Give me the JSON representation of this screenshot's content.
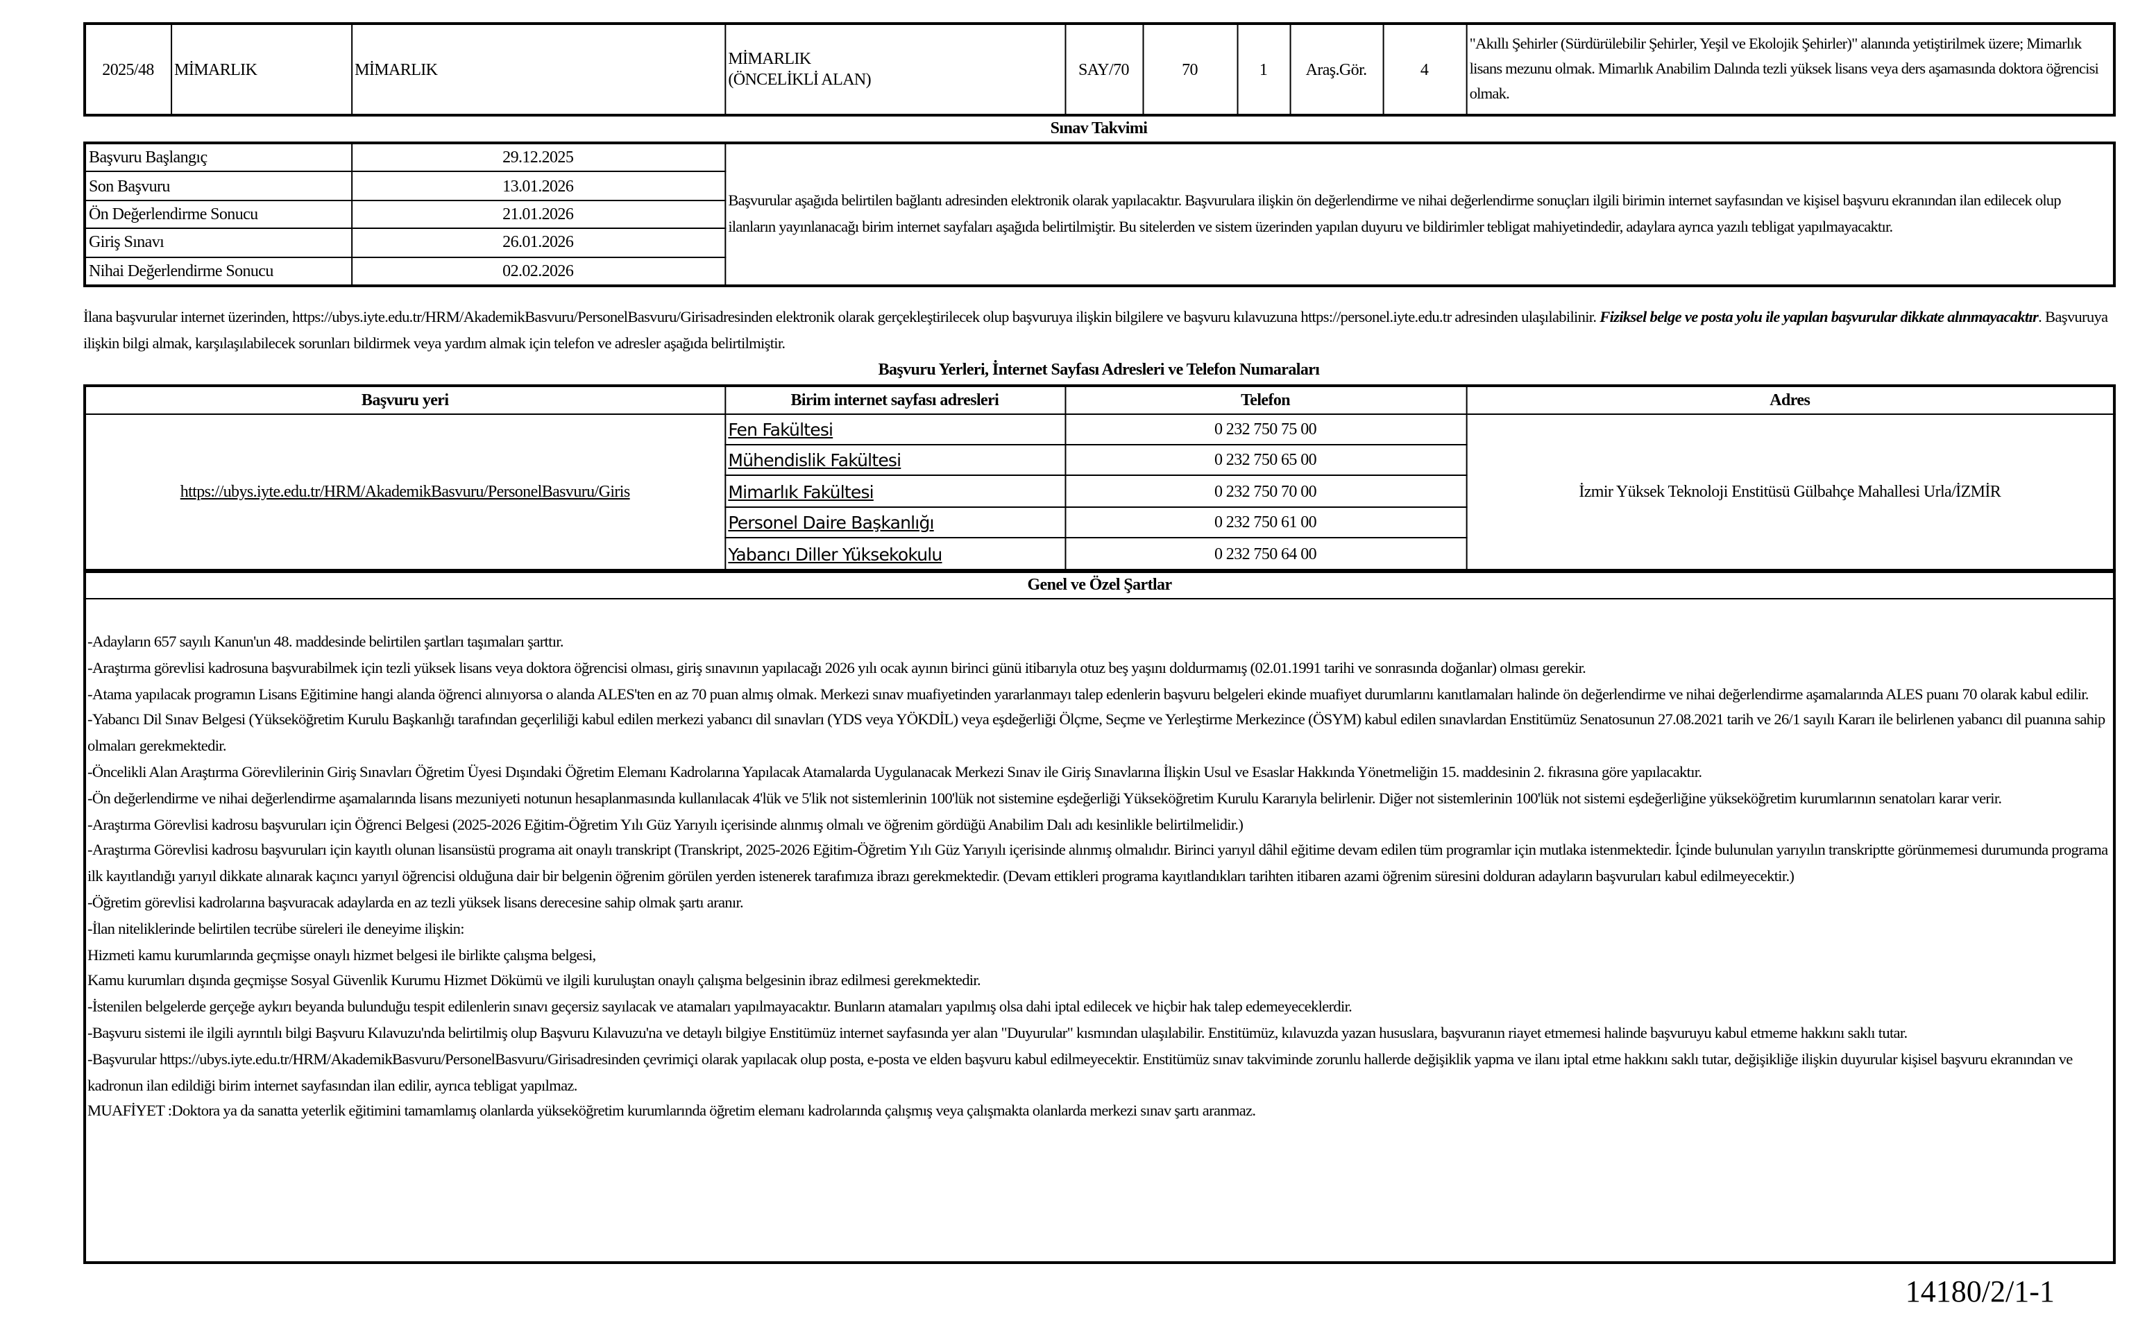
{
  "position_row": {
    "ilan_no": "2025/48",
    "birim": "MİMARLIK",
    "bolum": "MİMARLIK",
    "anabilim_dali_line1": "MİMARLIK",
    "anabilim_dali_line2": "(ÖNCELİKLİ ALAN)",
    "ales": "SAY/70",
    "puan": "70",
    "adet": "1",
    "unvan": "Araş.Gör.",
    "derece": "4",
    "aciklama": "\"Akıllı Şehirler (Sürdürülebilir Şehirler, Yeşil ve Ekolojik Şehirler)\" alanında yetiştirilmek üzere; Mimarlık lisans mezunu olmak. Mimarlık Anabilim Dalında  tezli yüksek lisans veya ders aşamasında doktora öğrencisi olmak."
  },
  "calendar": {
    "title": "Sınav Takvimi",
    "rows": [
      {
        "label": "Başvuru Başlangıç",
        "date": "29.12.2025"
      },
      {
        "label": "Son Başvuru",
        "date": "13.01.2026"
      },
      {
        "label": "Ön Değerlendirme Sonucu",
        "date": "21.01.2026"
      },
      {
        "label": "Giriş Sınavı",
        "date": "26.01.2026"
      },
      {
        "label": "Nihai Değerlendirme Sonucu",
        "date": "02.02.2026"
      }
    ],
    "note": "Başvurular aşağıda belirtilen bağlantı adresinden elektronik olarak yapılacaktır. Başvurulara ilişkin ön değerlendirme ve nihai değerlendirme sonuçları ilgili birimin internet sayfasından ve kişisel başvuru ekranından ilan edilecek olup ilanların yayınlanacağı birim internet sayfaları aşağıda belirtilmiştir. Bu sitelerden ve sistem üzerinden yapılan duyuru ve bildirimler tebligat mahiyetindedir, adaylara ayrıca yazılı tebligat yapılmayacaktır."
  },
  "intro": {
    "part1": "İlana başvurular internet üzerinden, https://ubys.iyte.edu.tr/HRM/AkademikBasvuru/PersonelBasvuru/Girisadresinden elektronik olarak gerçekleştirilecek olup başvuruya ilişkin bilgilere ve  başvuru kılavuzuna https://personel.iyte.edu.tr  adresinden ulaşılabilinir. ",
    "bold": "Fiziksel belge ve posta yolu ile yapılan başvurular dikkate alınmayacaktır",
    "part2": ". Başvuruya ilişkin bilgi almak, karşılaşılabilecek sorunları bildirmek veya yardım almak için telefon ve adresler aşağıda belirtilmiştir."
  },
  "contacts": {
    "title": "Başvuru Yerleri, İnternet Sayfası Adresleri ve Telefon Numaraları",
    "headers": [
      "Başvuru yeri",
      "Birim internet sayfası adresleri",
      "Telefon",
      "Adres"
    ],
    "basvuru_yeri": "https://ubys.iyte.edu.tr/HRM/AkademikBasvuru/PersonelBasvuru/Giris",
    "adres": "İzmir Yüksek Teknoloji Enstitüsü Gülbahçe Mahallesi Urla/İZMİR",
    "units": [
      {
        "name": "Fen Fakültesi",
        "phone": "0 232 750 75 00"
      },
      {
        "name": "Mühendislik Fakültesi",
        "phone": "0 232 750 65 00"
      },
      {
        "name": "Mimarlık Fakültesi",
        "phone": "0 232 750 70 00"
      },
      {
        "name": "Personel Daire Başkanlığı",
        "phone": "0 232 750 61 00"
      },
      {
        "name": "Yabancı Diller Yüksekokulu",
        "phone": "0 232 750 64 00"
      }
    ]
  },
  "conditions": {
    "title": "Genel ve Özel Şartlar",
    "items": [
      "-Adayların 657 sayılı Kanun'un 48. maddesinde belirtilen şartları taşımaları şarttır.",
      "-Araştırma görevlisi kadrosuna başvurabilmek için tezli yüksek lisans veya doktora öğrencisi olması, giriş sınavının yapılacağı 2026 yılı ocak ayının birinci günü itibarıyla otuz beş yaşını doldurmamış  (02.01.1991 tarihi ve sonrasında doğanlar) olması gerekir.",
      "-Atama yapılacak programın Lisans Eğitimine hangi alanda öğrenci alınıyorsa o alanda ALES'ten en az 70 puan almış olmak. Merkezi sınav muafiyetinden yararlanmayı talep edenlerin başvuru belgeleri ekinde muafiyet durumlarını kanıtlamaları halinde ön değerlendirme ve nihai değerlendirme aşamalarında ALES puanı 70 olarak kabul edilir.",
      "-Yabancı Dil Sınav Belgesi (Yükseköğretim Kurulu Başkanlığı tarafından geçerliliği kabul edilen merkezi yabancı dil sınavları (YDS veya YÖKDİL) veya eşdeğerliği Ölçme, Seçme ve Yerleştirme Merkezince (ÖSYM) kabul edilen sınavlardan  Enstitümüz Senatosunun 27.08.2021 tarih ve 26/1 sayılı Kararı ile belirlenen yabancı dil puanına sahip olmaları gerekmektedir.",
      "-Öncelikli Alan Araştırma Görevlilerinin Giriş Sınavları Öğretim Üyesi Dışındaki Öğretim Elemanı Kadrolarına Yapılacak Atamalarda Uygulanacak Merkezi Sınav ile Giriş Sınavlarına İlişkin Usul ve Esaslar Hakkında Yönetmeliğin 15. maddesinin 2. fıkrasına  göre yapılacaktır.",
      "-Ön değerlendirme ve nihai değerlendirme aşamalarında lisans mezuniyeti notunun hesaplanmasında kullanılacak 4'lük ve 5'lik not sistemlerinin 100'lük not sistemine eşdeğerliği Yükseköğretim Kurulu Kararıyla belirlenir. Diğer not sistemlerinin 100'lük not sistemi eşdeğerliğine yükseköğretim kurumlarının senatoları karar verir.",
      "-Araştırma Görevlisi kadrosu başvuruları için Öğrenci Belgesi (2025-2026 Eğitim-Öğretim Yılı Güz Yarıyılı içerisinde alınmış olmalı ve öğrenim gördüğü Anabilim Dalı adı kesinlikle belirtilmelidir.)",
      "-Araştırma Görevlisi kadrosu başvuruları için kayıtlı olunan lisansüstü programa ait onaylı transkript (Transkript, 2025-2026 Eğitim-Öğretim Yılı Güz Yarıyılı içerisinde alınmış olmalıdır. Birinci yarıyıl dâhil eğitime devam edilen tüm programlar için mutlaka istenmektedir. İçinde bulunulan yarıyılın transkriptte görünmemesi durumunda programa ilk kayıtlandığı yarıyıl dikkate alınarak kaçıncı yarıyıl öğrencisi olduğuna dair bir belgenin öğrenim görülen yerden istenerek tarafımıza ibrazı gerekmektedir. (Devam ettikleri programa kayıtlandıkları tarihten itibaren azami öğrenim süresini dolduran adayların başvuruları kabul edilmeyecektir.)",
      "-Öğretim görevlisi kadrolarına başvuracak adaylarda en az tezli yüksek lisans derecesine sahip olmak şartı aranır.",
      "-İlan niteliklerinde belirtilen tecrübe süreleri ile deneyime ilişkin:",
      "Hizmeti kamu kurumlarında geçmişse onaylı hizmet belgesi ile birlikte çalışma belgesi,",
      "Kamu kurumları dışında geçmişse  Sosyal Güvenlik Kurumu Hizmet Dökümü ve ilgili kuruluştan onaylı çalışma belgesinin ibraz edilmesi gerekmektedir.",
      "-İstenilen belgelerde gerçeğe aykırı beyanda bulunduğu tespit edilenlerin sınavı geçersiz sayılacak ve atamaları yapılmayacaktır. Bunların atamaları yapılmış olsa dahi iptal edilecek ve hiçbir hak talep edemeyeceklerdir.",
      "-Başvuru sistemi ile ilgili ayrıntılı bilgi Başvuru Kılavuzu'nda belirtilmiş olup Başvuru Kılavuzu'na ve detaylı bilgiye Enstitümüz internet sayfasında yer alan \"Duyurular\" kısmından ulaşılabilir. Enstitümüz, kılavuzda yazan hususlara, başvuranın riayet etmemesi halinde başvuruyu kabul etmeme hakkını saklı tutar.",
      "-Başvurular https://ubys.iyte.edu.tr/HRM/AkademikBasvuru/PersonelBasvuru/Girisadresinden çevrimiçi olarak yapılacak olup posta, e-posta ve elden başvuru kabul edilmeyecektir. Enstitümüz sınav takviminde zorunlu hallerde değişiklik yapma ve ilanı iptal etme  hakkını saklı tutar,  değişikliğe ilişkin duyurular kişisel başvuru ekranından ve kadronun ilan edildiği birim internet sayfasından ilan edilir, ayrıca tebligat yapılmaz.",
      "MUAFİYET :Doktora ya da sanatta yeterlik eğitimini tamamlamış olanlarda yükseköğretim kurumlarında öğretim elemanı kadrolarında çalışmış veya çalışmakta olanlarda merkezi sınav şartı aranmaz."
    ]
  },
  "footer_code": "14180/2/1-1"
}
